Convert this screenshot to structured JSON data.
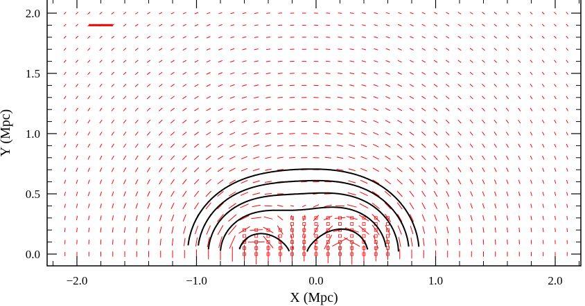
{
  "chart_data": {
    "type": "vector-field",
    "xlabel": "X (Mpc)",
    "ylabel": "Y (Mpc)",
    "xlim": [
      -2.2,
      2.2
    ],
    "ylim": [
      -0.1,
      2.1
    ],
    "xticks": [
      {
        "value": -2.0,
        "label": "−2.0"
      },
      {
        "value": -1.0,
        "label": "−1.0"
      },
      {
        "value": 0.0,
        "label": "0.0"
      },
      {
        "value": 1.0,
        "label": "1.0"
      },
      {
        "value": 2.0,
        "label": "2.0"
      }
    ],
    "yticks": [
      {
        "value": 0.0,
        "label": "0.0"
      },
      {
        "value": 0.5,
        "label": "0.5"
      },
      {
        "value": 1.0,
        "label": "1.0"
      },
      {
        "value": 1.5,
        "label": "1.5"
      },
      {
        "value": 2.0,
        "label": "2.0"
      }
    ],
    "grid": false,
    "colors": {
      "sticks": "#ff0000",
      "contours": "#000000",
      "markers": "#ff0000"
    },
    "mass_peaks": [
      {
        "x": -0.5,
        "y": 0.0,
        "weight": 1.0
      },
      {
        "x": 0.25,
        "y": 0.0,
        "weight": 1.15
      }
    ],
    "stick_grid": {
      "x_start": -2.1,
      "x_end": 2.1,
      "dx": 0.1,
      "y_start": 0.0,
      "y_end": 2.05,
      "dy": 0.1
    },
    "reference_stick": {
      "x": -1.8,
      "y": 1.9,
      "length": 0.2,
      "angle_deg": 0
    },
    "contour_levels": [
      0.22,
      0.28,
      0.36,
      0.48,
      0.75
    ],
    "marker_regions": [
      {
        "x_range": [
          -0.6,
          -0.3
        ],
        "y_range": [
          0.0,
          0.2
        ]
      },
      {
        "x_range": [
          -0.2,
          0.6
        ],
        "y_range": [
          0.0,
          0.3
        ]
      }
    ]
  }
}
